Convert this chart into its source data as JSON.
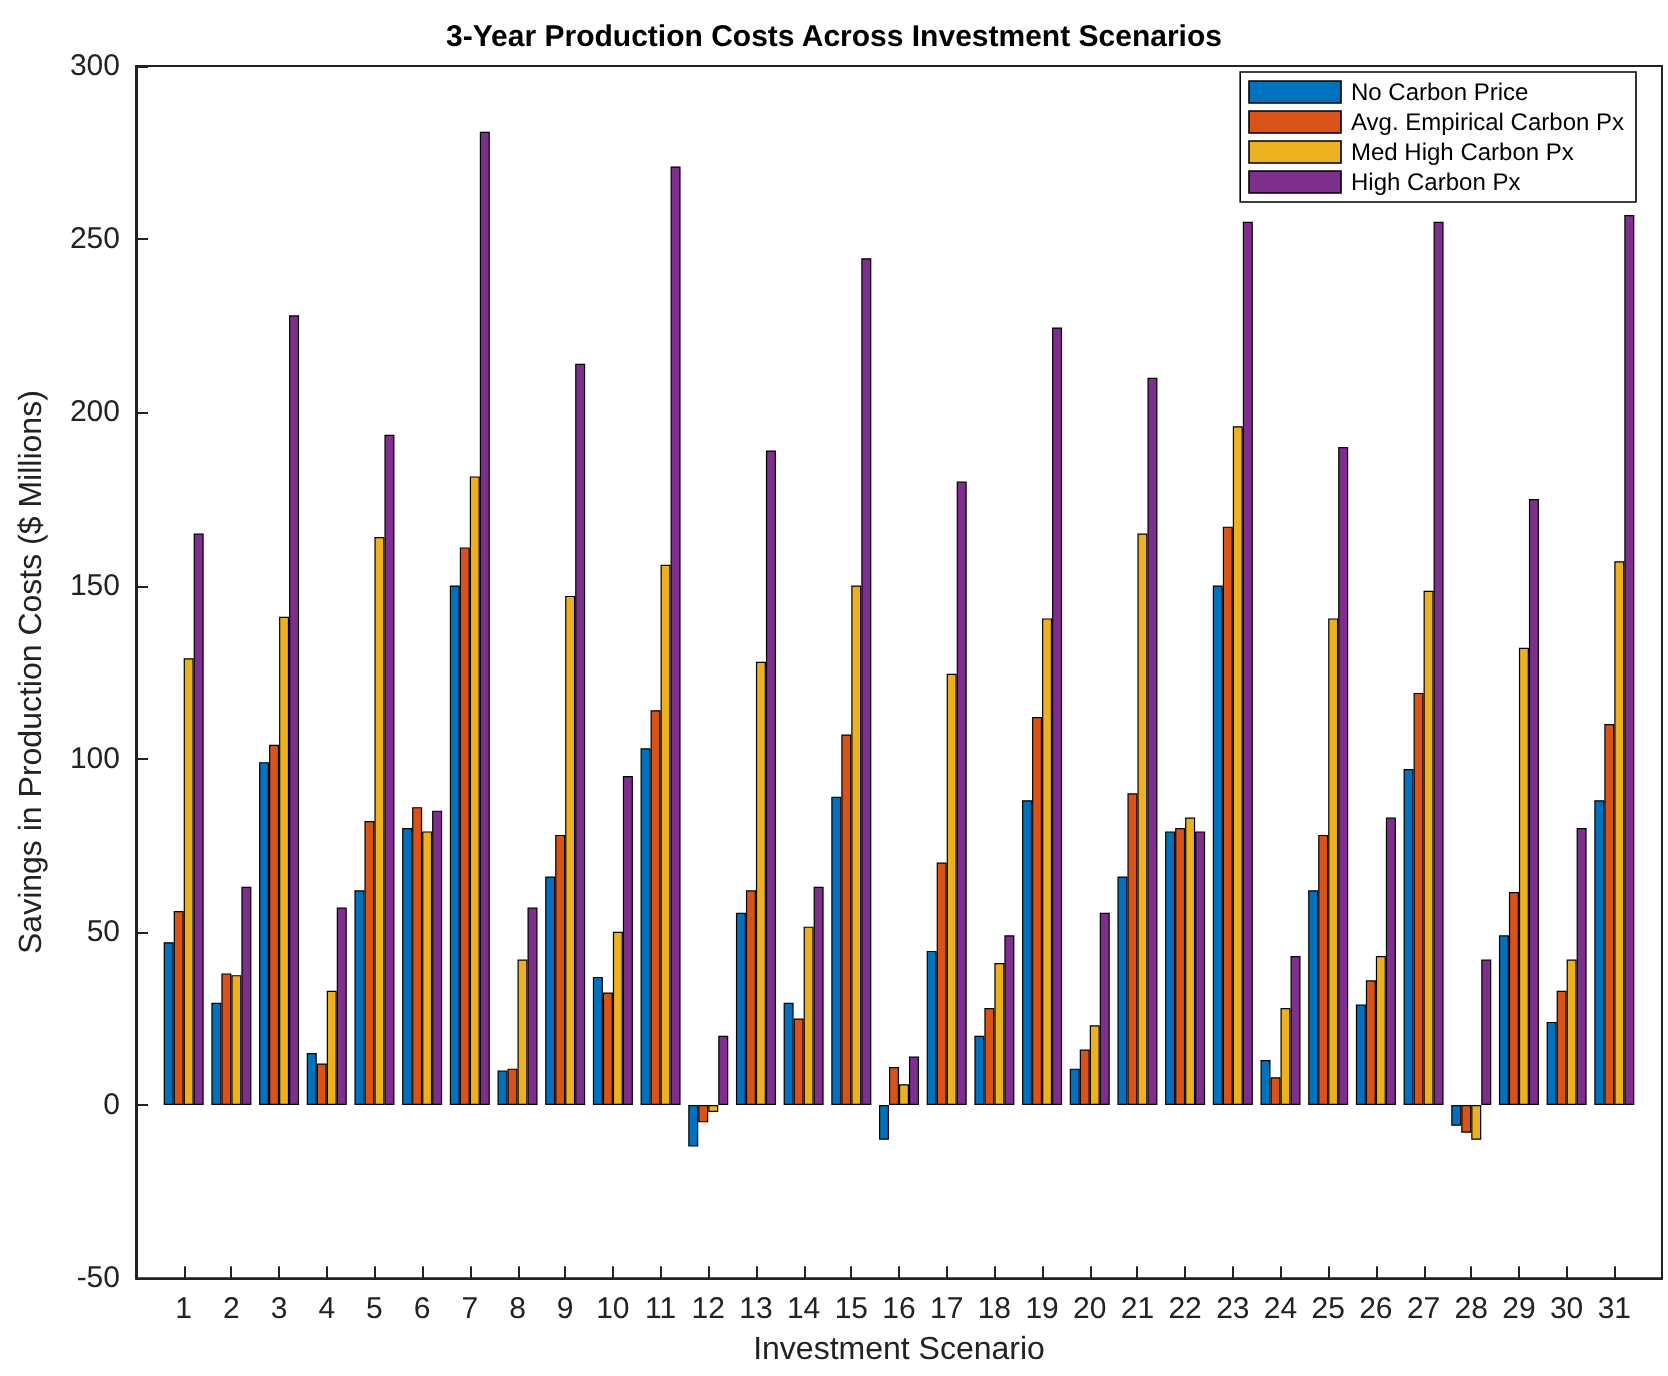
{
  "chart_data": {
    "type": "bar",
    "title": "3-Year Production Costs Across Investment Scenarios",
    "xlabel": "Investment Scenario",
    "ylabel": "Savings in Production Costs ($ Millions)",
    "x": [
      1,
      2,
      3,
      4,
      5,
      6,
      7,
      8,
      9,
      10,
      11,
      12,
      13,
      14,
      15,
      16,
      17,
      18,
      19,
      20,
      21,
      22,
      23,
      24,
      25,
      26,
      27,
      28,
      29,
      30,
      31
    ],
    "xlim": [
      0,
      32
    ],
    "xticks": [
      1,
      2,
      3,
      4,
      5,
      6,
      7,
      8,
      9,
      10,
      11,
      12,
      13,
      14,
      15,
      16,
      17,
      18,
      19,
      20,
      21,
      22,
      23,
      24,
      25,
      26,
      27,
      28,
      29,
      30,
      31
    ],
    "series": [
      {
        "name": "No Carbon Price",
        "color": "#0072bd",
        "values": [
          47,
          29.5,
          99,
          15,
          62,
          80,
          150,
          10,
          66,
          37,
          103,
          -12,
          55.5,
          29.5,
          89,
          -10,
          44.5,
          20,
          88,
          10.5,
          66,
          79,
          150,
          13,
          62,
          29,
          97,
          -6,
          49,
          24,
          88
        ]
      },
      {
        "name": "Avg. Empirical Carbon Px",
        "color": "#d95319",
        "values": [
          56,
          38,
          104,
          12,
          82,
          86,
          161,
          10.5,
          78,
          32.5,
          114,
          -5,
          62,
          25,
          107,
          11,
          70,
          28,
          112,
          16,
          90,
          80,
          167,
          8,
          78,
          36,
          119,
          -8,
          61.5,
          33,
          110
        ]
      },
      {
        "name": "Med High Carbon Px",
        "color": "#edb120",
        "values": [
          129,
          37.5,
          141,
          33,
          164,
          79,
          181.5,
          42,
          147,
          50,
          156,
          -2,
          128,
          51.5,
          150,
          6,
          124.5,
          41,
          140.5,
          23,
          165,
          83,
          196,
          28,
          140.5,
          43,
          148.5,
          -10,
          132,
          42,
          157
        ]
      },
      {
        "name": "High Carbon Px",
        "color": "#7e2f8e",
        "values": [
          165,
          63,
          228,
          57,
          193.5,
          85,
          281,
          57,
          214,
          95,
          271,
          20,
          189,
          63,
          244.5,
          14,
          180,
          49,
          224.5,
          55.5,
          210,
          79,
          255,
          43,
          190,
          83,
          255,
          42,
          175,
          80,
          257
        ]
      }
    ],
    "ylim": [
      -50,
      300
    ],
    "yticks": [
      -50,
      0,
      50,
      100,
      150,
      200,
      250,
      300
    ],
    "grid": false,
    "legend": "top right"
  }
}
